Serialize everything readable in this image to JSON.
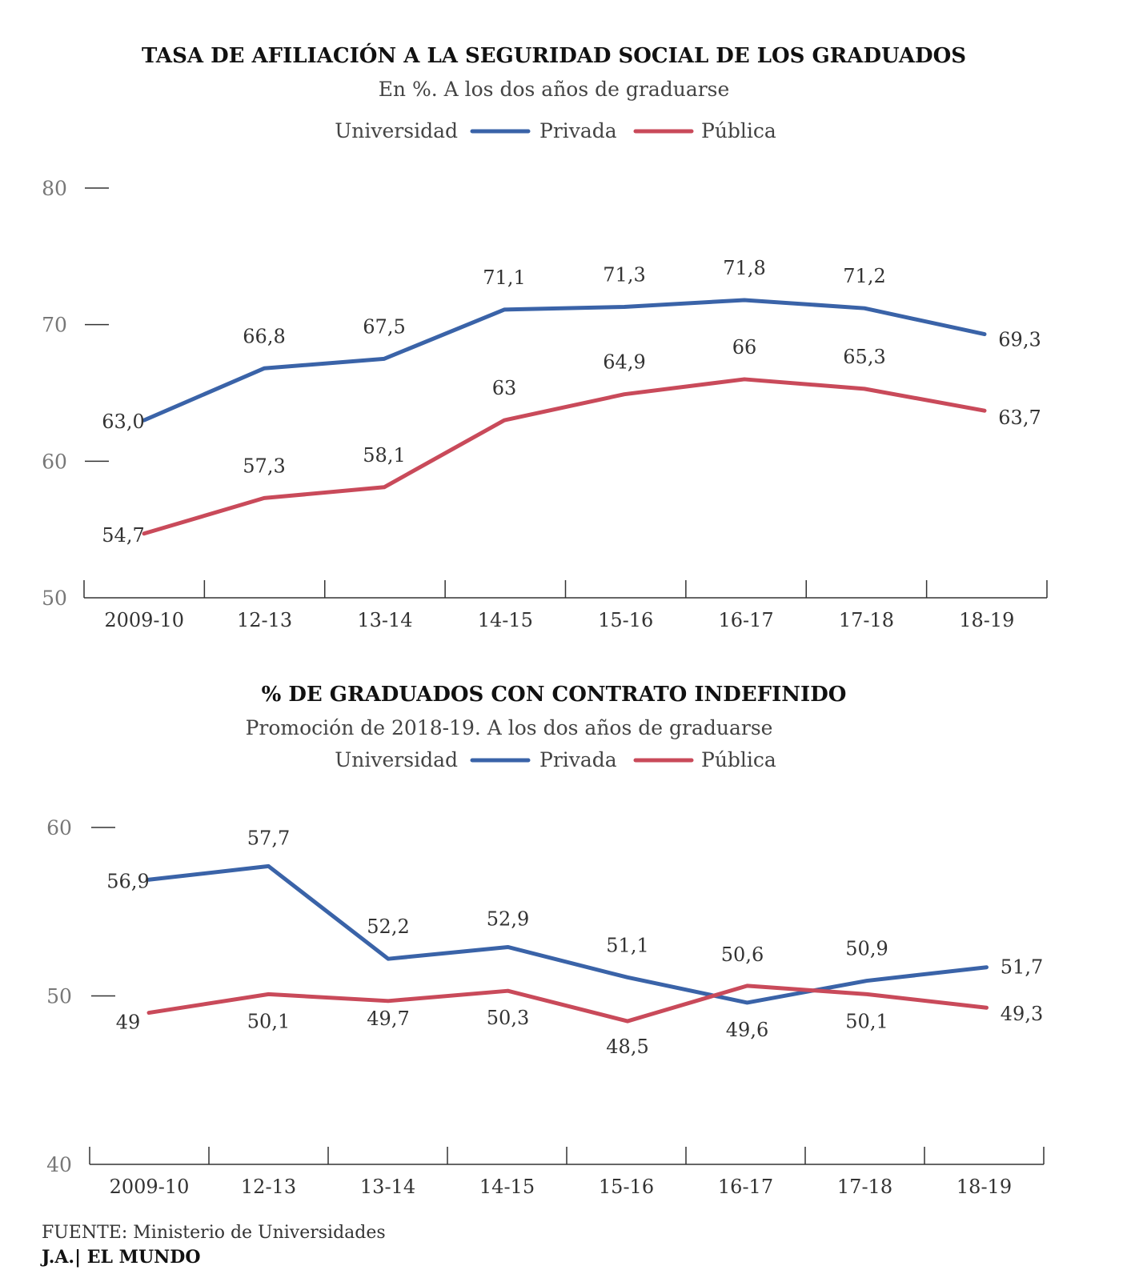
{
  "colors": {
    "privada": "#3a63a8",
    "publica": "#c94a5a",
    "axis": "#333333"
  },
  "chart_data": [
    {
      "type": "line",
      "title": "TASA DE AFILIACIÓN A LA SEGURIDAD SOCIAL DE LOS GRADUADOS",
      "subtitle": "En %. A los dos años de graduarse",
      "legend_title": "Universidad",
      "categories": [
        "2009-10",
        "12-13",
        "13-14",
        "14-15",
        "15-16",
        "16-17",
        "17-18",
        "18-19"
      ],
      "yticks": [
        "50",
        "60",
        "70",
        "80"
      ],
      "ylim": [
        50,
        80
      ],
      "series": [
        {
          "name": "Privada",
          "color": "#3a63a8",
          "values": [
            63.0,
            66.8,
            67.5,
            71.1,
            71.3,
            71.8,
            71.2,
            69.3
          ],
          "labels": [
            "63,0",
            "66,8",
            "67,5",
            "71,1",
            "71,3",
            "71,8",
            "71,2",
            "69,3"
          ]
        },
        {
          "name": "Pública",
          "color": "#c94a5a",
          "values": [
            54.7,
            57.3,
            58.1,
            63,
            64.9,
            66,
            65.3,
            63.7
          ],
          "labels": [
            "54,7",
            "57,3",
            "58,1",
            "63",
            "64,9",
            "66",
            "65,3",
            "63,7"
          ]
        }
      ]
    },
    {
      "type": "line",
      "title": "% DE GRADUADOS CON CONTRATO INDEFINIDO",
      "subtitle": "Promoción de 2018-19. A los dos años de graduarse",
      "legend_title": "Universidad",
      "categories": [
        "2009-10",
        "12-13",
        "13-14",
        "14-15",
        "15-16",
        "16-17",
        "17-18",
        "18-19"
      ],
      "yticks": [
        "40",
        "50",
        "60"
      ],
      "ylim": [
        40,
        60
      ],
      "series": [
        {
          "name": "Privada",
          "color": "#3a63a8",
          "values": [
            56.9,
            57.7,
            52.2,
            52.9,
            51.1,
            49.6,
            50.9,
            51.7
          ],
          "labels": [
            "56,9",
            "57,7",
            "52,2",
            "52,9",
            "51,1",
            "49,6",
            "50,9",
            "51,7"
          ]
        },
        {
          "name": "Pública",
          "color": "#c94a5a",
          "values": [
            49,
            50.1,
            49.7,
            50.3,
            48.5,
            50.6,
            50.1,
            49.3
          ],
          "labels": [
            "49",
            "50,1",
            "49,7",
            "50,3",
            "48,5",
            "50,6",
            "50,1",
            "49,3"
          ]
        }
      ]
    }
  ],
  "footer": {
    "source": "FUENTE: Ministerio de Universidades",
    "credit": "J.A.| EL MUNDO"
  }
}
